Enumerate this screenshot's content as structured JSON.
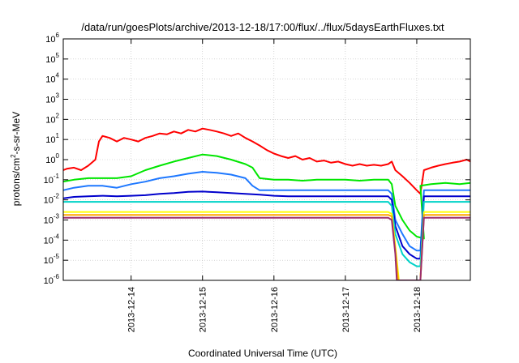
{
  "chart_data": {
    "type": "line",
    "title": "/data/run/goesPlots/archive/2013-12-18/17:00/flux/../flux/5daysEarthFluxes.txt",
    "xlabel": "Coordinated Universal Time (UTC)",
    "ylabel_parts": [
      "protons/cm",
      "2",
      "-s-sr-MeV"
    ],
    "yscale": "log",
    "ylim": [
      1e-06,
      1000000
    ],
    "xlim": [
      13.05,
      18.75
    ],
    "x_unit_note": "day of December 2013 (fractional)",
    "x_ticks": [
      {
        "value": 14,
        "label": "2013-12-14"
      },
      {
        "value": 15,
        "label": "2013-12-15"
      },
      {
        "value": 16,
        "label": "2013-12-16"
      },
      {
        "value": 17,
        "label": "2013-12-17"
      },
      {
        "value": 18,
        "label": "2013-12-18"
      }
    ],
    "y_ticks": [
      {
        "value": 1e-06,
        "base": "10",
        "exp": "-6"
      },
      {
        "value": 1e-05,
        "base": "10",
        "exp": "-5"
      },
      {
        "value": 0.0001,
        "base": "10",
        "exp": "-4"
      },
      {
        "value": 0.001,
        "base": "10",
        "exp": "-3"
      },
      {
        "value": 0.01,
        "base": "10",
        "exp": "-2"
      },
      {
        "value": 0.1,
        "base": "10",
        "exp": "-1"
      },
      {
        "value": 1,
        "base": "10",
        "exp": "0"
      },
      {
        "value": 10,
        "base": "10",
        "exp": "1"
      },
      {
        "value": 100,
        "base": "10",
        "exp": "2"
      },
      {
        "value": 1000,
        "base": "10",
        "exp": "3"
      },
      {
        "value": 10000,
        "base": "10",
        "exp": "4"
      },
      {
        "value": 100000,
        "base": "10",
        "exp": "5"
      },
      {
        "value": 1000000,
        "base": "10",
        "exp": "6"
      }
    ],
    "grid": true,
    "legend": "none",
    "series": [
      {
        "color": "#ff0000",
        "x": [
          13.05,
          13.1,
          13.2,
          13.3,
          13.4,
          13.5,
          13.55,
          13.6,
          13.7,
          13.8,
          13.9,
          14.0,
          14.1,
          14.2,
          14.3,
          14.4,
          14.5,
          14.6,
          14.7,
          14.8,
          14.9,
          15.0,
          15.1,
          15.2,
          15.3,
          15.4,
          15.5,
          15.6,
          15.7,
          15.8,
          15.9,
          16.0,
          16.1,
          16.2,
          16.3,
          16.4,
          16.5,
          16.6,
          16.7,
          16.8,
          16.9,
          17.0,
          17.1,
          17.2,
          17.3,
          17.4,
          17.5,
          17.6,
          17.65,
          17.7,
          17.8,
          17.9,
          18.0,
          18.05,
          18.1,
          18.2,
          18.3,
          18.4,
          18.5,
          18.6,
          18.7,
          18.75
        ],
        "y": [
          0.3,
          0.35,
          0.4,
          0.3,
          0.5,
          1,
          8,
          15,
          12,
          8,
          12,
          10,
          8,
          12,
          15,
          20,
          18,
          25,
          20,
          30,
          25,
          35,
          30,
          25,
          20,
          15,
          20,
          12,
          8,
          5,
          3,
          2,
          1.5,
          1.2,
          1.5,
          1,
          1.2,
          0.8,
          0.9,
          0.7,
          0.8,
          0.6,
          0.5,
          0.6,
          0.5,
          0.55,
          0.5,
          0.6,
          0.8,
          0.3,
          0.15,
          0.07,
          0.03,
          0.02,
          0.3,
          0.4,
          0.5,
          0.6,
          0.7,
          0.8,
          1,
          0.8
        ]
      },
      {
        "color": "#00e600",
        "x": [
          13.05,
          13.2,
          13.4,
          13.6,
          13.8,
          14.0,
          14.2,
          14.4,
          14.6,
          14.8,
          15.0,
          15.2,
          15.4,
          15.6,
          15.7,
          15.8,
          16.0,
          16.2,
          16.4,
          16.6,
          16.8,
          17.0,
          17.2,
          17.4,
          17.6,
          17.65,
          17.7,
          17.8,
          17.9,
          18.0,
          18.1,
          18.05,
          18.2,
          18.4,
          18.6,
          18.75
        ],
        "y": [
          0.08,
          0.1,
          0.12,
          0.12,
          0.12,
          0.15,
          0.3,
          0.5,
          0.8,
          1.2,
          1.8,
          1.5,
          1.0,
          0.6,
          0.4,
          0.12,
          0.1,
          0.1,
          0.09,
          0.1,
          0.1,
          0.1,
          0.09,
          0.1,
          0.1,
          0.06,
          0.005,
          0.001,
          0.0003,
          0.00015,
          0.00012,
          0.05,
          0.06,
          0.07,
          0.06,
          0.07
        ]
      },
      {
        "color": "#1e78ff",
        "x": [
          13.05,
          13.2,
          13.4,
          13.6,
          13.8,
          14.0,
          14.2,
          14.4,
          14.6,
          14.8,
          15.0,
          15.2,
          15.4,
          15.6,
          15.7,
          15.8,
          16.0,
          16.2,
          16.4,
          16.6,
          16.8,
          17.0,
          17.2,
          17.4,
          17.6,
          17.65,
          17.7,
          17.8,
          17.9,
          18.0,
          18.05,
          18.1,
          18.2,
          18.4,
          18.6,
          18.75
        ],
        "y": [
          0.03,
          0.04,
          0.05,
          0.05,
          0.04,
          0.06,
          0.08,
          0.12,
          0.15,
          0.2,
          0.25,
          0.22,
          0.18,
          0.12,
          0.05,
          0.03,
          0.03,
          0.03,
          0.03,
          0.03,
          0.03,
          0.03,
          0.03,
          0.03,
          0.03,
          0.02,
          0.001,
          0.0002,
          5e-05,
          3e-05,
          3e-05,
          0.03,
          0.03,
          0.03,
          0.03,
          0.03
        ]
      },
      {
        "color": "#0000cc",
        "x": [
          13.05,
          13.2,
          13.4,
          13.6,
          13.8,
          14.0,
          14.2,
          14.4,
          14.6,
          14.8,
          15.0,
          15.2,
          15.4,
          15.6,
          15.8,
          16.0,
          16.2,
          16.4,
          16.6,
          16.8,
          17.0,
          17.2,
          17.4,
          17.6,
          17.65,
          17.7,
          17.8,
          17.9,
          18.0,
          18.05,
          18.1,
          18.2,
          18.4,
          18.6,
          18.75
        ],
        "y": [
          0.012,
          0.014,
          0.015,
          0.016,
          0.015,
          0.016,
          0.017,
          0.02,
          0.022,
          0.025,
          0.026,
          0.024,
          0.022,
          0.02,
          0.018,
          0.016,
          0.015,
          0.015,
          0.015,
          0.015,
          0.015,
          0.015,
          0.015,
          0.015,
          0.01,
          0.0005,
          5e-05,
          2e-05,
          1.2e-05,
          1.2e-05,
          0.015,
          0.015,
          0.015,
          0.015,
          0.015
        ]
      },
      {
        "color": "#00d2c8",
        "x": [
          13.05,
          13.4,
          13.8,
          14.2,
          14.6,
          15.0,
          15.4,
          15.8,
          16.2,
          16.6,
          17.0,
          17.4,
          17.6,
          17.65,
          17.7,
          17.8,
          17.9,
          18.0,
          18.05,
          18.1,
          18.4,
          18.75
        ],
        "y": [
          0.008,
          0.008,
          0.008,
          0.008,
          0.008,
          0.008,
          0.008,
          0.008,
          0.008,
          0.008,
          0.008,
          0.008,
          0.008,
          0.005,
          0.0002,
          2e-05,
          8e-06,
          5e-06,
          5e-06,
          0.008,
          0.008,
          0.008
        ]
      },
      {
        "color": "#ffff00",
        "x": [
          13.05,
          13.4,
          13.8,
          14.2,
          14.6,
          15.0,
          15.4,
          15.8,
          16.2,
          16.6,
          17.0,
          17.4,
          17.6,
          17.65,
          17.7,
          17.75,
          18.05,
          18.1,
          18.4,
          18.75
        ],
        "y": [
          0.0025,
          0.0025,
          0.0025,
          0.0025,
          0.0025,
          0.0025,
          0.0025,
          0.0025,
          0.0025,
          0.0025,
          0.0025,
          0.0025,
          0.0025,
          0.002,
          5e-05,
          1e-06,
          1e-06,
          0.0025,
          0.0025,
          0.0025
        ]
      },
      {
        "color": "#ffa500",
        "x": [
          13.05,
          13.4,
          13.8,
          14.2,
          14.6,
          15.0,
          15.4,
          15.8,
          16.2,
          16.6,
          17.0,
          17.4,
          17.6,
          17.65,
          17.7,
          17.74,
          18.05,
          18.1,
          18.4,
          18.75
        ],
        "y": [
          0.0018,
          0.0018,
          0.0018,
          0.0018,
          0.0018,
          0.0018,
          0.0018,
          0.0018,
          0.0018,
          0.0018,
          0.0018,
          0.0018,
          0.0018,
          0.0015,
          3e-05,
          1e-06,
          1e-06,
          0.0018,
          0.0018,
          0.0018
        ]
      },
      {
        "color": "#9b2d6e",
        "x": [
          13.05,
          13.4,
          13.8,
          14.2,
          14.6,
          15.0,
          15.4,
          15.8,
          16.2,
          16.6,
          17.0,
          17.4,
          17.6,
          17.65,
          17.7,
          17.72,
          18.05,
          18.1,
          18.4,
          18.75
        ],
        "y": [
          0.0013,
          0.0013,
          0.0013,
          0.0013,
          0.0013,
          0.0013,
          0.0013,
          0.0013,
          0.0013,
          0.0013,
          0.0013,
          0.0013,
          0.0013,
          0.001,
          2e-05,
          1e-06,
          1e-06,
          0.0013,
          0.0013,
          0.0013
        ]
      }
    ]
  }
}
